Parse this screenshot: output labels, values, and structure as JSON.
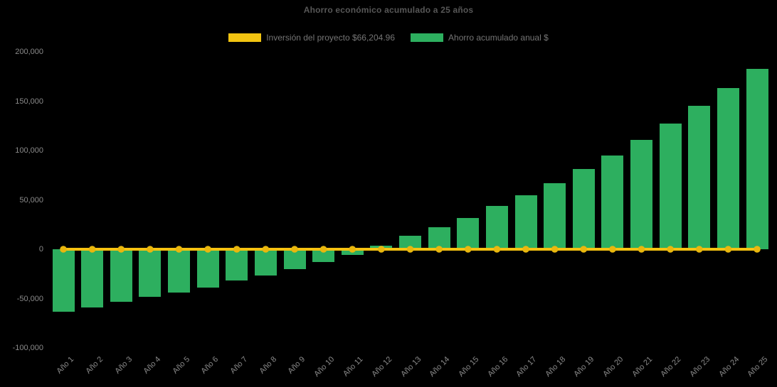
{
  "title": "Ahorro económico acumulado a 25 años",
  "legend": {
    "items": [
      {
        "label": "Inversión del proyecto $66,204.96",
        "color": "#F2C411"
      },
      {
        "label": "Ahorro acumulado anual $",
        "color": "#2DAF5F"
      }
    ]
  },
  "colors": {
    "background": "#000000",
    "bar_green": "#2DAF5F",
    "line_yellow": "#F5C211",
    "marker_yellow": "#E9B70E",
    "title_text": "#575757",
    "legend_text": "#757575",
    "axis_text": "#8A8A8A"
  },
  "chart_data": {
    "type": "bar",
    "title": "Ahorro económico acumulado a 25 años",
    "categories": [
      "Año 1",
      "Año 2",
      "Año 3",
      "Año 4",
      "Año 5",
      "Año 6",
      "Año 7",
      "Año 8",
      "Año 9",
      "Año 10",
      "Año 11",
      "Año 12",
      "Año 13",
      "Año 14",
      "Año 15",
      "Año 16",
      "Año 17",
      "Año 18",
      "Año 19",
      "Año 20",
      "Año 21",
      "Año 22",
      "Año 23",
      "Año 24",
      "Año 25"
    ],
    "series": [
      {
        "name": "Inversión del proyecto $66,204.96",
        "type": "line",
        "color": "#F5C211",
        "marker": "circle",
        "marker_color": "#E9B70E",
        "values": [
          0,
          0,
          0,
          0,
          0,
          0,
          0,
          0,
          0,
          0,
          0,
          0,
          0,
          0,
          0,
          0,
          0,
          0,
          0,
          0,
          0,
          0,
          0,
          0,
          0
        ]
      },
      {
        "name": "Ahorro acumulado anual $",
        "type": "bar",
        "color": "#2DAF5F",
        "values": [
          -63500,
          -59000,
          -53500,
          -48000,
          -44000,
          -38500,
          -32000,
          -26500,
          -20000,
          -13000,
          -5500,
          3500,
          13500,
          22000,
          32000,
          44000,
          55000,
          67000,
          81000,
          95000,
          110500,
          127000,
          145000,
          163000,
          183000
        ]
      }
    ],
    "xlabel": "",
    "ylabel": "",
    "ylim": [
      -100000,
      200000
    ],
    "yticks": [
      {
        "value": 200000,
        "label": "200,000"
      },
      {
        "value": 150000,
        "label": "150,000"
      },
      {
        "value": 100000,
        "label": "100,000"
      },
      {
        "value": 50000,
        "label": "50,000"
      },
      {
        "value": 0,
        "label": "0"
      },
      {
        "value": -50000,
        "label": "-50,000"
      },
      {
        "value": -100000,
        "label": "-100,000"
      }
    ],
    "grid": false,
    "legend_position": "top-center",
    "plot_background": "#000000"
  }
}
